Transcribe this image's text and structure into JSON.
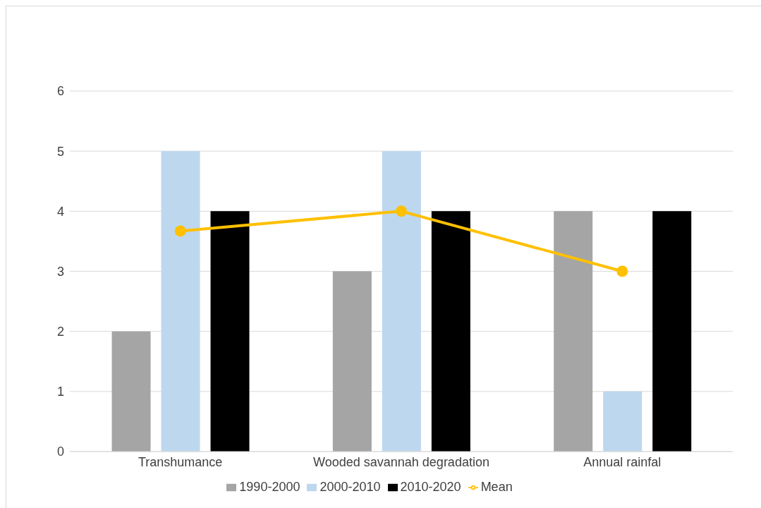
{
  "chart_data": {
    "type": "bar",
    "categories": [
      "Transhumance",
      "Wooded savannah degradation",
      "Annual rainfal"
    ],
    "series": [
      {
        "name": "1990-2000",
        "color": "#a5a5a5",
        "values": [
          2,
          3,
          4
        ]
      },
      {
        "name": "2000-2010",
        "color": "#bdd7ee",
        "values": [
          5,
          5,
          1
        ]
      },
      {
        "name": "2010-2020",
        "color": "#000000",
        "values": [
          4,
          4,
          4
        ]
      },
      {
        "name": "Mean",
        "type": "line",
        "color": "#ffc000",
        "values": [
          3.67,
          4,
          3
        ]
      }
    ],
    "ylim": [
      0,
      6
    ],
    "yticks": [
      0,
      1,
      2,
      3,
      4,
      5,
      6
    ],
    "grid": "y",
    "legend": "bottom",
    "marker": "circle"
  }
}
